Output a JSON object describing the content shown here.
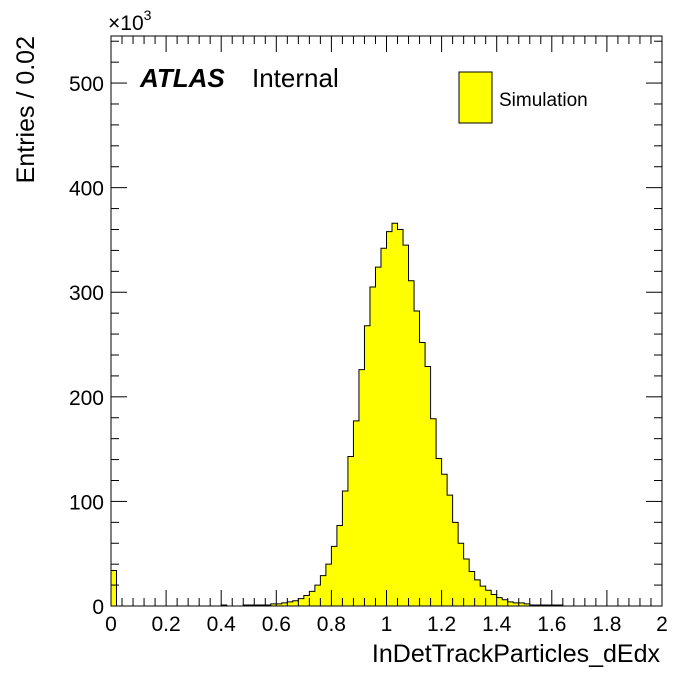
{
  "chart_data": {
    "type": "bar",
    "histogram": true,
    "bin_width": 0.02,
    "x_range": [
      0,
      2
    ],
    "xlabel": "InDetTrackParticles_dEdx",
    "ylabel": "Entries / 0.02",
    "y_multiplier": "×10",
    "y_multiplier_exp": "3",
    "ylim": [
      0,
      545
    ],
    "y_ticks": [
      0,
      100,
      200,
      300,
      400,
      500
    ],
    "x_ticks": [
      0,
      0.2,
      0.4,
      0.6,
      0.8,
      1,
      1.2,
      1.4,
      1.6,
      1.8,
      2
    ],
    "x_tick_labels": [
      "0",
      "0.2",
      "0.4",
      "0.6",
      "0.8",
      "1",
      "1.2",
      "1.4",
      "1.6",
      "1.8",
      "2"
    ],
    "y_tick_labels": [
      "0",
      "100",
      "200",
      "300",
      "400",
      "500"
    ],
    "atlas_label": "ATLAS",
    "atlas_sublabel": "Internal",
    "legend": {
      "position": "top-right",
      "entries": [
        "Simulation"
      ]
    },
    "series": [
      {
        "name": "Simulation",
        "color": "#ffff00",
        "bins_x": [
          0,
          0.02,
          0.04,
          0.06,
          0.08,
          0.1,
          0.12,
          0.14,
          0.16,
          0.18,
          0.2,
          0.22,
          0.24,
          0.26,
          0.28,
          0.3,
          0.32,
          0.34,
          0.36,
          0.38,
          0.4,
          0.42,
          0.44,
          0.46,
          0.48,
          0.5,
          0.52,
          0.54,
          0.56,
          0.58,
          0.6,
          0.62,
          0.64,
          0.66,
          0.68,
          0.7,
          0.72,
          0.74,
          0.76,
          0.78,
          0.8,
          0.82,
          0.84,
          0.86,
          0.88,
          0.9,
          0.92,
          0.94,
          0.96,
          0.98,
          1.0,
          1.02,
          1.04,
          1.06,
          1.08,
          1.1,
          1.12,
          1.14,
          1.16,
          1.18,
          1.2,
          1.22,
          1.24,
          1.26,
          1.28,
          1.3,
          1.32,
          1.34,
          1.36,
          1.38,
          1.4,
          1.42,
          1.44,
          1.46,
          1.48,
          1.5,
          1.52,
          1.54,
          1.56,
          1.58,
          1.6,
          1.62,
          1.64,
          1.66,
          1.68,
          1.7,
          1.72,
          1.74,
          1.76,
          1.78,
          1.8,
          1.82,
          1.84,
          1.86,
          1.88,
          1.9,
          1.92,
          1.94,
          1.96,
          1.98
        ],
        "values": [
          34,
          0,
          0,
          0,
          0,
          0,
          0,
          0,
          0,
          0,
          0,
          0,
          0,
          0,
          0,
          0,
          0,
          0,
          0,
          0,
          1,
          0,
          0,
          0,
          1,
          1,
          1,
          1,
          1,
          2,
          2,
          3,
          4,
          5,
          7,
          10,
          14,
          20,
          29,
          40,
          57,
          77,
          110,
          143,
          177,
          226,
          268,
          305,
          324,
          342,
          358,
          366,
          360,
          345,
          311,
          282,
          252,
          229,
          179,
          141,
          126,
          106,
          80,
          60,
          45,
          33,
          25,
          19,
          15,
          11,
          8,
          6,
          4,
          3,
          3,
          2,
          1,
          1,
          1,
          1,
          1,
          1,
          0,
          0,
          0,
          0,
          0,
          0,
          0,
          0,
          0,
          0,
          0,
          0,
          0,
          0,
          0,
          0,
          0,
          0
        ]
      }
    ]
  }
}
